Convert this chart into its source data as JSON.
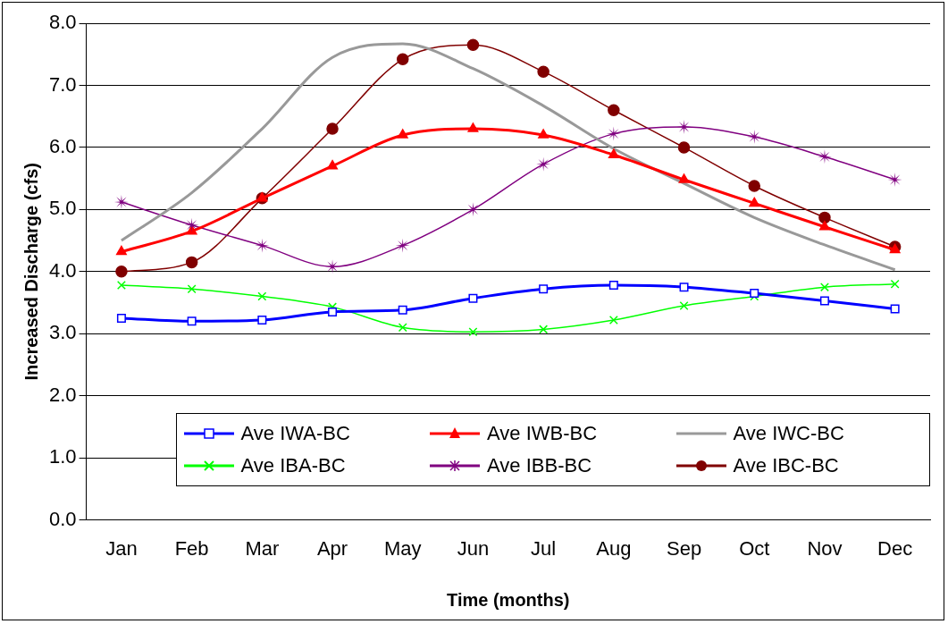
{
  "chart_data": {
    "type": "line",
    "xlabel": "Time (months)",
    "ylabel": "Increased Discharge (cfs)",
    "categories": [
      "Jan",
      "Feb",
      "Mar",
      "Apr",
      "May",
      "Jun",
      "Jul",
      "Aug",
      "Sep",
      "Oct",
      "Nov",
      "Dec"
    ],
    "ylim": [
      0,
      8
    ],
    "yticks": [
      {
        "value": 0,
        "label": "0.0"
      },
      {
        "value": 1,
        "label": "1.0"
      },
      {
        "value": 2,
        "label": "2.0"
      },
      {
        "value": 3,
        "label": "3.0"
      },
      {
        "value": 4,
        "label": "4.0"
      },
      {
        "value": 5,
        "label": "5.0"
      },
      {
        "value": 6,
        "label": "6.0"
      },
      {
        "value": 7,
        "label": "7.0"
      },
      {
        "value": 8,
        "label": "8.0"
      }
    ],
    "grid": "y",
    "legend": "bottom",
    "line_style": "solid",
    "series": [
      {
        "name": "Ave IWA-BC",
        "color": "#0000ff",
        "marker": "square",
        "values": [
          3.25,
          3.2,
          3.22,
          3.35,
          3.38,
          3.57,
          3.72,
          3.78,
          3.75,
          3.65,
          3.53,
          3.4
        ]
      },
      {
        "name": "Ave IWB-BC",
        "color": "#ff0000",
        "marker": "triangle",
        "values": [
          4.32,
          4.65,
          5.18,
          5.7,
          6.2,
          6.3,
          6.2,
          5.88,
          5.48,
          5.1,
          4.72,
          4.35
        ]
      },
      {
        "name": "Ave IWC-BC",
        "color": "#999999",
        "marker": "none",
        "values": [
          4.5,
          5.27,
          6.3,
          7.45,
          7.67,
          7.27,
          6.67,
          5.98,
          5.42,
          4.87,
          4.43,
          4.03
        ]
      },
      {
        "name": "Ave IBA-BC",
        "color": "#00ff00",
        "marker": "cross",
        "values": [
          3.78,
          3.72,
          3.6,
          3.43,
          3.1,
          3.03,
          3.07,
          3.22,
          3.45,
          3.6,
          3.75,
          3.8
        ]
      },
      {
        "name": "Ave IBB-BC",
        "color": "#800080",
        "marker": "star",
        "values": [
          5.12,
          4.75,
          4.42,
          4.08,
          4.42,
          5.0,
          5.73,
          6.22,
          6.33,
          6.17,
          5.85,
          5.48
        ]
      },
      {
        "name": "Ave IBC-BC",
        "color": "#800000",
        "marker": "circle",
        "values": [
          4.0,
          4.15,
          5.18,
          6.3,
          7.42,
          7.65,
          7.22,
          6.6,
          6.0,
          5.38,
          4.87,
          4.4
        ]
      }
    ]
  }
}
